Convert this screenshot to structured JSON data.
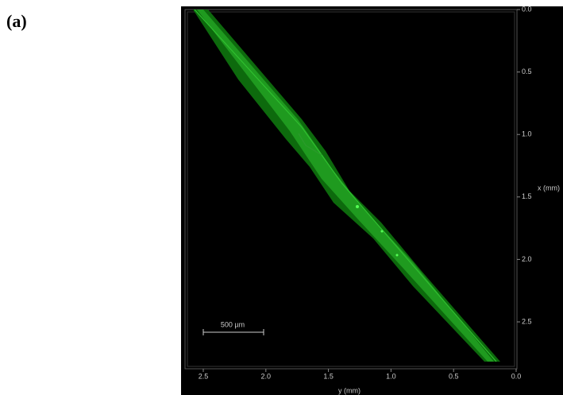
{
  "panel_label": "(a)",
  "x_axis": {
    "label": "y (mm)",
    "ticks": [
      "2.5",
      "2.0",
      "1.5",
      "1.0",
      "0.5",
      "0.0"
    ]
  },
  "right_axis": {
    "label": "x (mm)",
    "ticks": [
      "0.0",
      "0.5",
      "1.0",
      "1.5",
      "2.0",
      "2.5"
    ]
  },
  "scale_bar": {
    "label": "500 µm"
  }
}
